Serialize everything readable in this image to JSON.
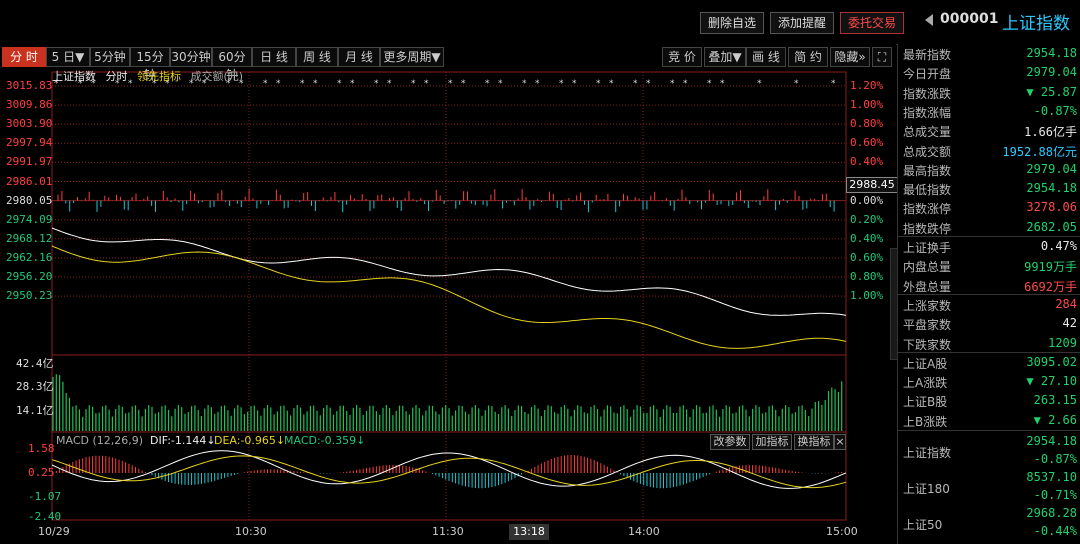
{
  "header": {
    "buttons": {
      "delete_fav": "删除自选",
      "add_alert": "添加提醒",
      "trade": "委托交易"
    },
    "code": "000001",
    "name": "上证指数"
  },
  "periods": {
    "items": [
      "分 时",
      "5 日▼",
      "5分钟",
      "15分钟",
      "30分钟",
      "60分钟",
      "日 线",
      "周 线",
      "月 线",
      "更多周期▼"
    ],
    "active": 0,
    "tools": [
      "竞 价",
      "叠加▼",
      "画 线",
      "简 约",
      "隐藏»"
    ]
  },
  "chart": {
    "legend": {
      "index": "上证指数",
      "fenshi": "分时",
      "lead": "领先指标",
      "amount": "成交额(元)"
    },
    "price_ticks": [
      "3015.83",
      "3009.86",
      "3003.90",
      "2997.94",
      "2991.97",
      "2986.01",
      "2980.05",
      "2974.09",
      "2968.12",
      "2962.16",
      "2956.20",
      "2950.23"
    ],
    "pct_ticks": [
      "1.20%",
      "1.00%",
      "0.80%",
      "0.60%",
      "0.40%",
      "0.20%",
      "0.00%",
      "0.20%",
      "0.40%",
      "0.60%",
      "0.80%",
      "1.00%"
    ],
    "price_cursor": "2988.45",
    "volume_ticks": [
      "42.4亿",
      "28.3亿",
      "14.1亿"
    ],
    "macd": {
      "label": "MACD (12,26,9)",
      "dif": "DIF:-1.144↓",
      "dea": "DEA:-0.965↓",
      "macd": "MACD:-0.359↓",
      "ticks": [
        "1.58",
        "0.25",
        "-1.07",
        "-2.40"
      ],
      "btn_params": "改参数",
      "btn_add": "加指标",
      "btn_swap": "换指标"
    },
    "time_ticks": [
      "10/29",
      "10:30",
      "11:30",
      "14:00",
      "15:00"
    ],
    "time_cursor": "13:18",
    "colors": {
      "price_line": "#ffffff",
      "avg_line": "#e6d21e",
      "up": "#ff3c3c",
      "down": "#1fc6d0",
      "volume": "#1fbf5a",
      "grid": "#8a1e1e"
    }
  },
  "panel": {
    "rows": [
      {
        "label": "最新指数",
        "value": "2954.18",
        "color": "grn"
      },
      {
        "label": "今日开盘",
        "value": "2979.04",
        "color": "grn"
      },
      {
        "label": "指数涨跌",
        "value": "▼ 25.87",
        "color": "grn"
      },
      {
        "label": "指数涨幅",
        "value": "-0.87%",
        "color": "grn"
      },
      {
        "label": "总成交量",
        "value": "1.66亿手",
        "color": "wht"
      },
      {
        "label": "总成交额",
        "value": "1952.88亿元",
        "color": "cyan"
      },
      {
        "label": "最高指数",
        "value": "2979.04",
        "color": "grn"
      },
      {
        "label": "最低指数",
        "value": "2954.18",
        "color": "grn"
      },
      {
        "label": "指数涨停",
        "value": "3278.06",
        "color": "red"
      },
      {
        "label": "指数跌停",
        "value": "2682.05",
        "color": "grn"
      },
      {
        "label": "上证换手",
        "value": "0.47%",
        "color": "wht"
      },
      {
        "label": "内盘总量",
        "value": "9919万手",
        "color": "grn"
      },
      {
        "label": "外盘总量",
        "value": "6692万手",
        "color": "red"
      },
      {
        "label": "上涨家数",
        "value": "284",
        "color": "red"
      },
      {
        "label": "平盘家数",
        "value": "42",
        "color": "wht"
      },
      {
        "label": "下跌家数",
        "value": "1209",
        "color": "grn"
      },
      {
        "label": "上证A股",
        "value": "3095.02",
        "color": "grn"
      },
      {
        "label": "上A涨跌",
        "value": "▼ 27.10",
        "color": "grn"
      },
      {
        "label": "上证B股",
        "value": "263.15",
        "color": "grn"
      },
      {
        "label": "上B涨跌",
        "value": "▼ 2.66",
        "color": "grn"
      }
    ],
    "bottom": [
      {
        "label": "上证指数",
        "value": "2954.18",
        "sub": "-0.87%"
      },
      {
        "label": "上证180",
        "value": "8537.10",
        "sub": "-0.71%"
      },
      {
        "label": "上证50",
        "value": "2968.28",
        "sub": "-0.44%"
      }
    ]
  }
}
